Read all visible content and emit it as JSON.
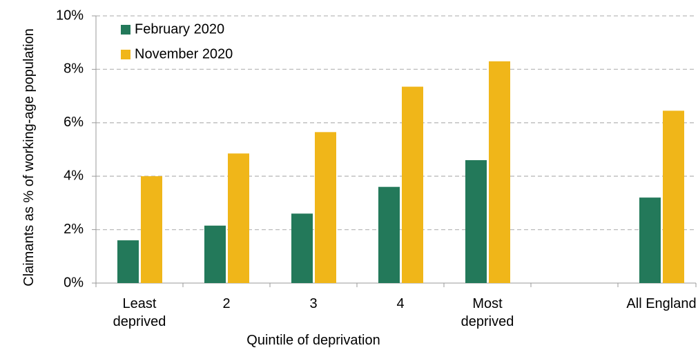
{
  "chart_data": {
    "type": "bar",
    "x_label": "Quintile of deprivation",
    "y_label": "Claimants as % of working-age population",
    "categories": [
      "Least deprived",
      "2",
      "3",
      "4",
      "Most deprived",
      null,
      "All England"
    ],
    "series": [
      {
        "name": "February 2020",
        "color": "#23795a",
        "values": [
          1.6,
          2.15,
          2.6,
          3.6,
          4.6,
          null,
          3.2
        ]
      },
      {
        "name": "November 2020",
        "color": "#f0b619",
        "values": [
          4.0,
          4.85,
          5.65,
          7.35,
          8.3,
          null,
          6.45
        ]
      }
    ],
    "ylim": [
      0,
      10
    ],
    "yticks": [
      {
        "value": 0,
        "label": "0%"
      },
      {
        "value": 2,
        "label": "2%"
      },
      {
        "value": 4,
        "label": "4%"
      },
      {
        "value": 6,
        "label": "6%"
      },
      {
        "value": 8,
        "label": "8%"
      },
      {
        "value": 10,
        "label": "10%"
      }
    ],
    "grid": true,
    "legend": "upper left"
  }
}
